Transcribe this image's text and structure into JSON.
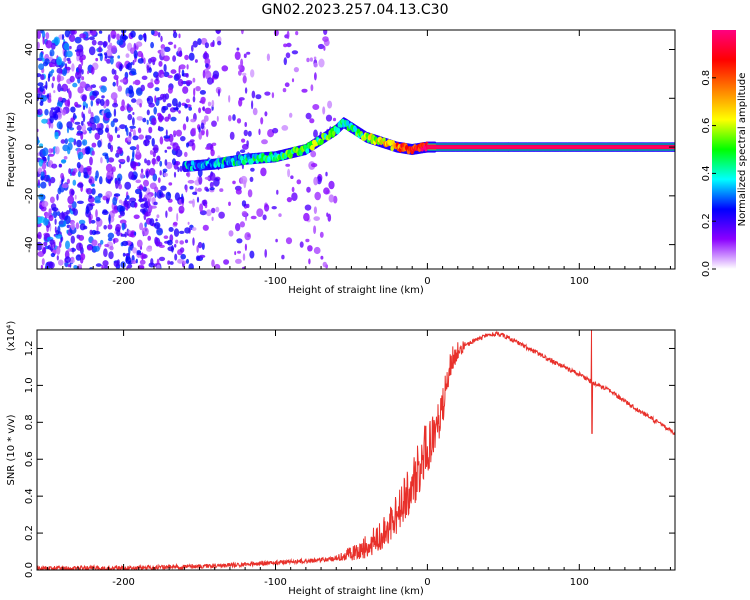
{
  "title": "GN02.2023.257.04.13.C30",
  "chart_data": [
    {
      "type": "heatmap",
      "xlabel": "Height of straight line (km)",
      "ylabel": "Frequency (Hz)",
      "xlim": [
        -257,
        163
      ],
      "ylim": [
        -50,
        48
      ],
      "xticks": [
        -200,
        -100,
        0,
        100
      ],
      "yticks": [
        -40,
        -20,
        0,
        20,
        40
      ],
      "colorbar": {
        "label": "Normalized spectral amplitude",
        "ticks": [
          "0.0",
          "0.2",
          "0.4",
          "0.6",
          "0.8"
        ],
        "range": [
          0,
          1
        ],
        "colors": [
          "#ffffff",
          "#8b00ff",
          "#0000ff",
          "#00ffff",
          "#00ff00",
          "#ffff00",
          "#ff8000",
          "#ff0000",
          "#ff0080"
        ]
      },
      "noise_region": {
        "x": [
          -257,
          -60
        ],
        "level": 0.25
      },
      "ridge": {
        "x": [
          -160,
          -140,
          -120,
          -100,
          -80,
          -70,
          -60,
          -55,
          -50,
          -40,
          -30,
          -20,
          -10,
          0,
          20,
          60,
          100,
          163
        ],
        "y": [
          -8,
          -7,
          -5,
          -4,
          -1,
          3,
          7,
          10,
          8,
          4,
          2,
          0,
          -1,
          0,
          0,
          0,
          0,
          0
        ],
        "amplitude": [
          0.3,
          0.35,
          0.4,
          0.45,
          0.5,
          0.5,
          0.45,
          0.4,
          0.45,
          0.55,
          0.65,
          0.75,
          0.85,
          0.95,
          0.95,
          0.95,
          0.95,
          0.95
        ]
      },
      "grid": false
    },
    {
      "type": "line",
      "xlabel": "Height of straight line (km)",
      "ylabel": "SNR (10 * v/v)",
      "yunit": "(x10⁴)",
      "xlim": [
        -257,
        163
      ],
      "ylim": [
        0,
        1.3
      ],
      "xticks": [
        -200,
        -100,
        0,
        100
      ],
      "yticks": [
        0.0,
        0.2,
        0.4,
        0.6,
        0.8,
        1.0,
        1.2
      ],
      "color": "#e8302a",
      "series": [
        {
          "x": [
            -257,
            -200,
            -150,
            -120,
            -100,
            -80,
            -60,
            -50,
            -40,
            -30,
            -20,
            -10,
            0,
            10,
            15,
            20,
            30,
            40,
            45,
            50,
            60,
            80,
            100,
            108,
            120,
            140,
            163
          ],
          "y": [
            0.01,
            0.01,
            0.02,
            0.03,
            0.04,
            0.05,
            0.06,
            0.08,
            0.11,
            0.17,
            0.28,
            0.43,
            0.62,
            0.85,
            1.1,
            1.18,
            1.24,
            1.27,
            1.28,
            1.27,
            1.23,
            1.14,
            1.06,
            1.02,
            0.97,
            0.86,
            0.74
          ],
          "spikes": [
            {
              "x": 108,
              "y": 1.3
            },
            {
              "x": 108.3,
              "y": 0.74
            }
          ]
        }
      ],
      "grid": false
    }
  ]
}
